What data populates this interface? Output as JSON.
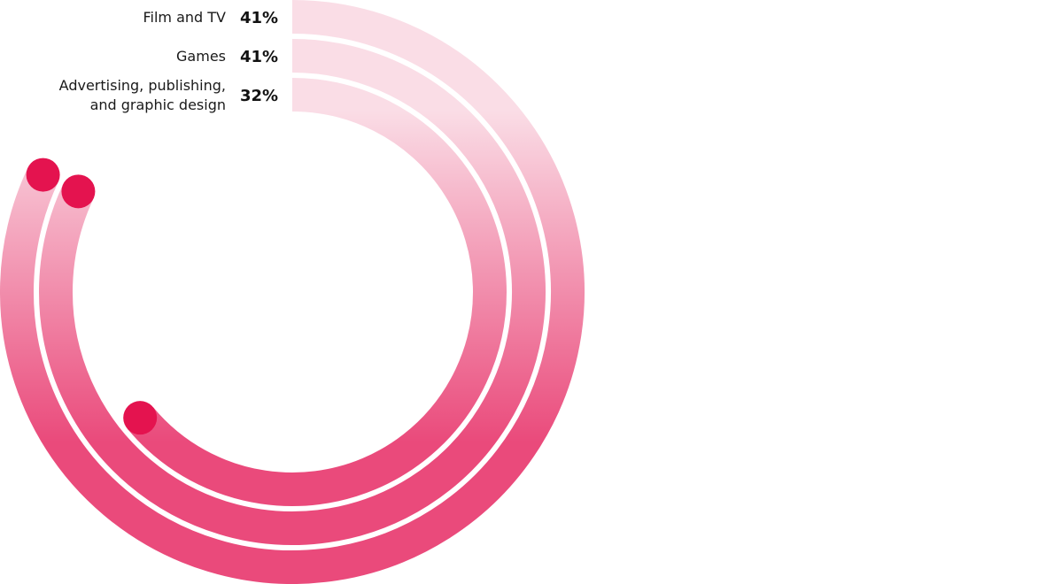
{
  "chart_data": {
    "type": "radial-bar",
    "title": "",
    "categories": [
      "Film and TV",
      "Games",
      "Advertising, publishing, and graphic design"
    ],
    "category_label_lines": [
      [
        "Film and TV"
      ],
      [
        "Games"
      ],
      [
        "Advertising, publishing,",
        "and graphic design"
      ]
    ],
    "values": [
      41,
      41,
      32
    ],
    "value_labels": [
      "41%",
      "41%",
      "32%"
    ],
    "unit": "%",
    "direction": "clockwise from top",
    "colors": {
      "gradient_start": "#fadde6",
      "gradient_end": "#ea4a7b",
      "end_cap": "#e4134f"
    }
  }
}
